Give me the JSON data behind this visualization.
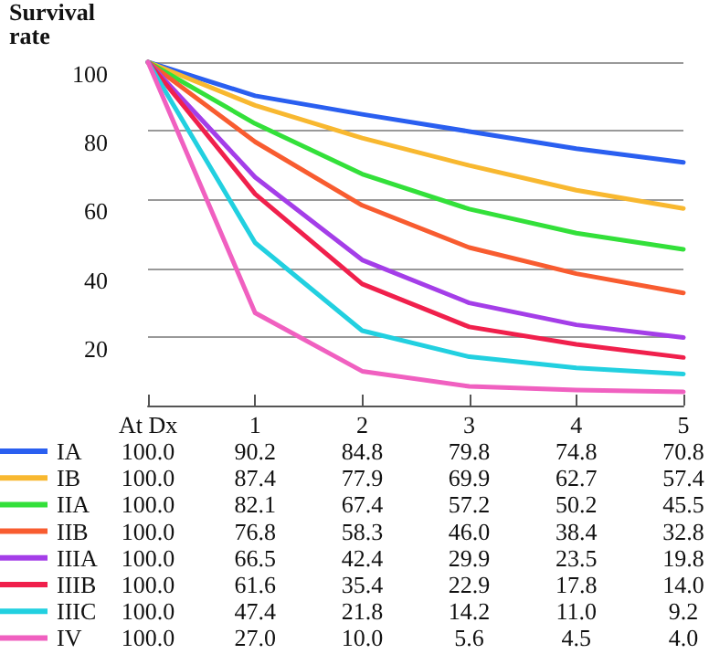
{
  "chart_data": {
    "type": "line",
    "ylabel": "Survival\nrate",
    "categories": [
      "At Dx",
      "1",
      "2",
      "3",
      "4",
      "5"
    ],
    "ylim": [
      0,
      100
    ],
    "yticks": [
      20,
      40,
      60,
      80,
      100
    ],
    "grid": "y",
    "legend": "bottom",
    "marker": "none",
    "line_style": "solid",
    "series": [
      {
        "name": "IA",
        "color": "#2a5ff0",
        "values": [
          100.0,
          90.2,
          84.8,
          79.8,
          74.8,
          70.8
        ],
        "value_labels": [
          "100.0",
          "90.2",
          "84.8",
          "79.8",
          "74.8",
          "70.8"
        ]
      },
      {
        "name": "IB",
        "color": "#f8b830",
        "values": [
          100.0,
          87.4,
          77.9,
          69.9,
          62.7,
          57.4
        ],
        "value_labels": [
          "100.0",
          "87.4",
          "77.9",
          "69.9",
          "62.7",
          "57.4"
        ]
      },
      {
        "name": "IIA",
        "color": "#33e03a",
        "values": [
          100.0,
          82.1,
          67.4,
          57.2,
          50.2,
          45.5
        ],
        "value_labels": [
          "100.0",
          "82.1",
          "67.4",
          "57.2",
          "50.2",
          "45.5"
        ]
      },
      {
        "name": "IIB",
        "color": "#f85c30",
        "values": [
          100.0,
          76.8,
          58.3,
          46.0,
          38.4,
          32.8
        ],
        "value_labels": [
          "100.0",
          "76.8",
          "58.3",
          "46.0",
          "38.4",
          "32.8"
        ]
      },
      {
        "name": "IIIA",
        "color": "#a43ee8",
        "values": [
          100.0,
          66.5,
          42.4,
          29.9,
          23.5,
          19.8
        ],
        "value_labels": [
          "100.0",
          "66.5",
          "42.4",
          "29.9",
          "23.5",
          "19.8"
        ]
      },
      {
        "name": "IIIB",
        "color": "#f0204c",
        "values": [
          100.0,
          61.6,
          35.4,
          22.9,
          17.8,
          14.0
        ],
        "value_labels": [
          "100.0",
          "61.6",
          "35.4",
          "22.9",
          "17.8",
          "14.0"
        ]
      },
      {
        "name": "IIIC",
        "color": "#22d0e0",
        "values": [
          100.0,
          47.4,
          21.8,
          14.2,
          11.0,
          9.2
        ],
        "value_labels": [
          "100.0",
          "47.4",
          "21.8",
          "14.2",
          "11.0",
          "9.2"
        ]
      },
      {
        "name": "IV",
        "color": "#f060c0",
        "values": [
          100.0,
          27.0,
          10.0,
          5.6,
          4.5,
          4.0
        ],
        "value_labels": [
          "100.0",
          "27.0",
          "10.0",
          "5.6",
          "4.5",
          "4.0"
        ]
      }
    ]
  }
}
